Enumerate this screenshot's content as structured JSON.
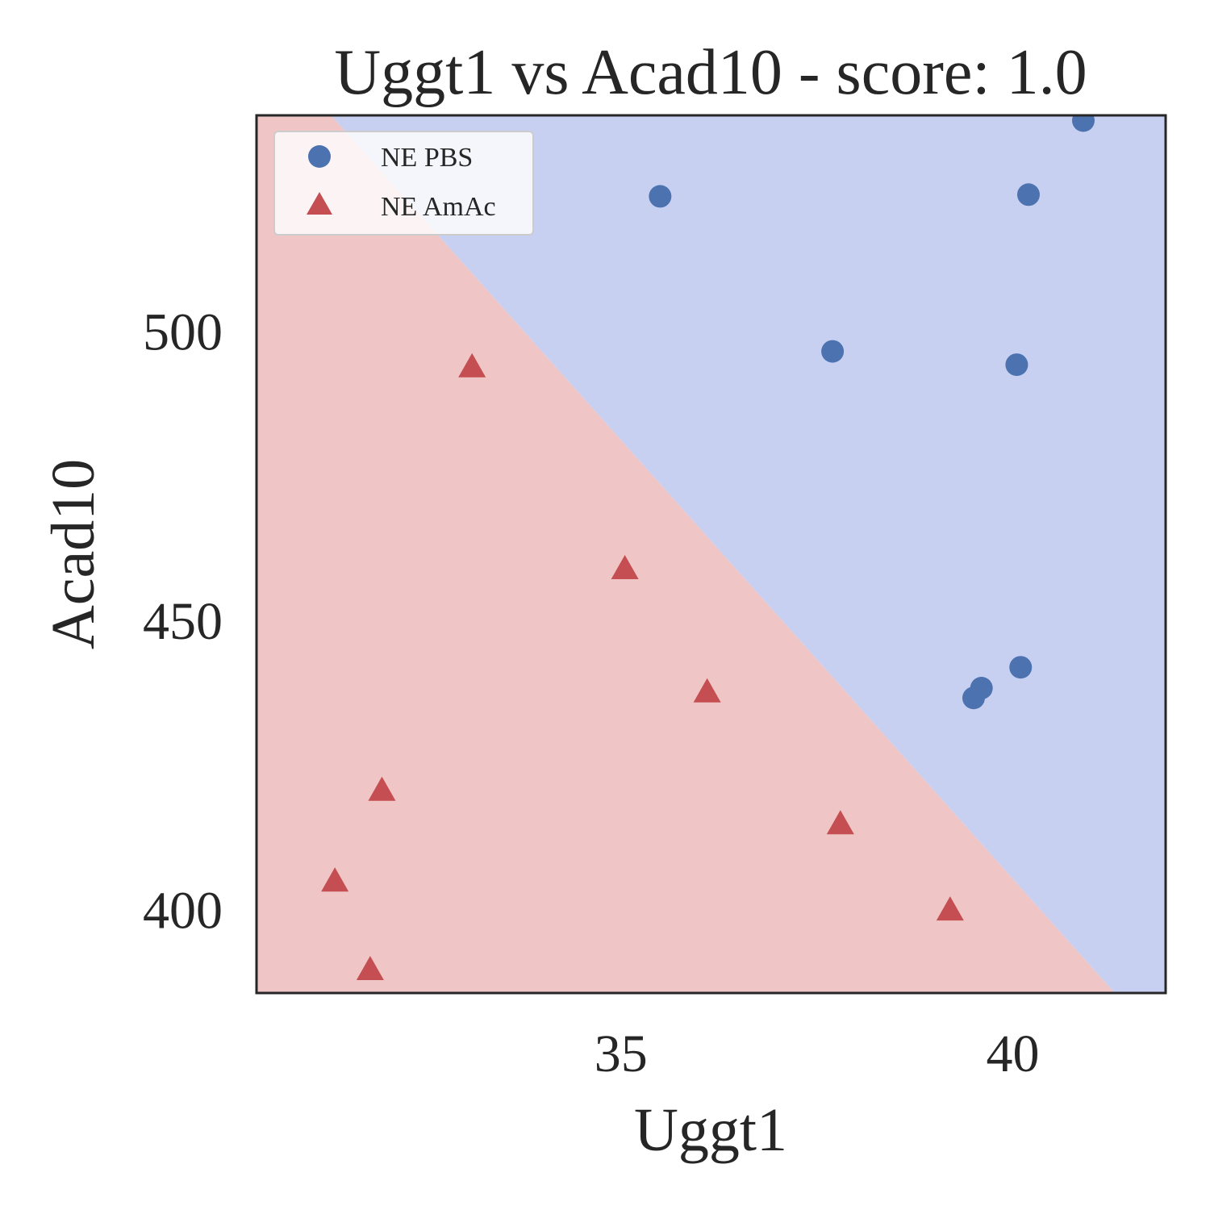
{
  "chart_data": {
    "type": "scatter",
    "title": "Uggt1 vs Acad10 - score: 1.0",
    "xlabel": "Uggt1",
    "ylabel": "Acad10",
    "xlim": [
      30.35,
      41.95
    ],
    "ylim": [
      385.6,
      537.3
    ],
    "x_ticks": [
      35,
      40
    ],
    "y_ticks": [
      400,
      450,
      500
    ],
    "grid": false,
    "legend": {
      "position": "upper-left"
    },
    "decision_boundary": {
      "points": [
        [
          31.3,
          537.3
        ],
        [
          41.3,
          385.6
        ]
      ],
      "regions": [
        {
          "series": "NE PBS",
          "color": "#c8d0f1",
          "side": "upper-right"
        },
        {
          "series": "NE AmAc",
          "color": "#efc5c5",
          "side": "lower-left"
        }
      ]
    },
    "series": [
      {
        "name": "NE PBS",
        "marker": "circle",
        "color": "#4c72b0",
        "points": [
          [
            35.5,
            523.3
          ],
          [
            40.9,
            536.4
          ],
          [
            40.2,
            523.6
          ],
          [
            37.7,
            496.5
          ],
          [
            40.05,
            494.2
          ],
          [
            40.1,
            441.9
          ],
          [
            39.6,
            438.3
          ],
          [
            39.5,
            436.6
          ]
        ]
      },
      {
        "name": "NE AmAc",
        "marker": "triangle",
        "color": "#c44e52",
        "points": [
          [
            33.1,
            493.7
          ],
          [
            35.05,
            458.8
          ],
          [
            36.1,
            437.5
          ],
          [
            31.95,
            420.5
          ],
          [
            31.35,
            404.8
          ],
          [
            31.8,
            389.5
          ],
          [
            37.8,
            414.7
          ],
          [
            39.2,
            399.8
          ]
        ]
      }
    ]
  }
}
